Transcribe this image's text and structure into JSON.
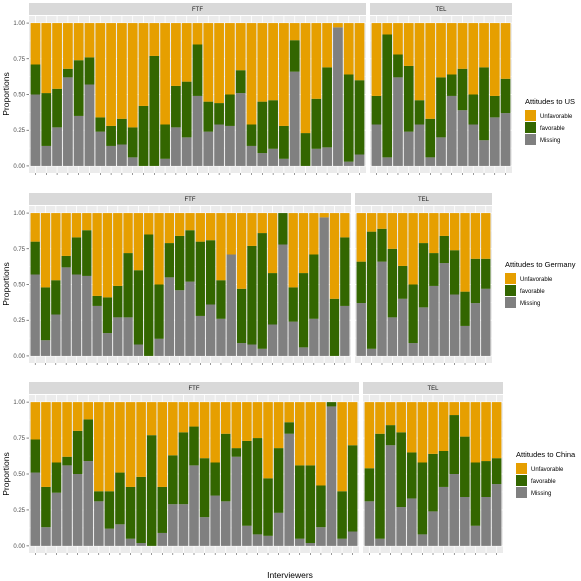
{
  "chart_data": [
    {
      "type": "bar",
      "stacked": true,
      "ylabel": "Proportions",
      "ylim": [
        0,
        1
      ],
      "yticks": [
        "0.00",
        "0.25",
        "0.50",
        "0.75",
        "1.00"
      ],
      "legend_title": "Attitudes to US",
      "legend_position": "right",
      "series_order": [
        "Missing",
        "favorable",
        "Unfavorable"
      ],
      "legend_entries": [
        "Unfavorable",
        "favorable",
        "Missing"
      ],
      "colors": {
        "Missing": "#808080",
        "favorable": "#336600",
        "Unfavorable": "#E69F00"
      },
      "facets": [
        {
          "label": "FTF",
          "missing": [
            0.5,
            0.14,
            0.27,
            0.62,
            0.35,
            0.57,
            0.24,
            0.14,
            0.15,
            0.06,
            0.0,
            0.0,
            0.05,
            0.27,
            0.2,
            0.49,
            0.24,
            0.29,
            0.28,
            0.51,
            0.14,
            0.09,
            0.12,
            0.05,
            0.66,
            0.0,
            0.12,
            0.13,
            0.97,
            0.03,
            0.08
          ],
          "favorable": [
            0.21,
            0.37,
            0.27,
            0.06,
            0.39,
            0.19,
            0.1,
            0.14,
            0.18,
            0.21,
            0.42,
            0.77,
            0.24,
            0.29,
            0.39,
            0.36,
            0.21,
            0.15,
            0.22,
            0.16,
            0.15,
            0.36,
            0.34,
            0.23,
            0.22,
            0.23,
            0.35,
            0.56,
            0.0,
            0.61,
            0.52
          ]
        },
        {
          "label": "TEL",
          "missing": [
            0.29,
            0.06,
            0.62,
            0.24,
            0.29,
            0.06,
            0.2,
            0.49,
            0.39,
            0.29,
            0.18,
            0.34,
            0.37
          ],
          "favorable": [
            0.2,
            0.86,
            0.16,
            0.46,
            0.17,
            0.27,
            0.42,
            0.15,
            0.29,
            0.21,
            0.51,
            0.15,
            0.24
          ]
        }
      ]
    },
    {
      "type": "bar",
      "stacked": true,
      "ylabel": "Proportions",
      "ylim": [
        0,
        1
      ],
      "yticks": [
        "0.00",
        "0.25",
        "0.50",
        "0.75",
        "1.00"
      ],
      "legend_title": "Attitudes to Germany",
      "legend_position": "right",
      "series_order": [
        "Missing",
        "favorable",
        "Unfavorable"
      ],
      "legend_entries": [
        "Unfavorable",
        "favorable",
        "Missing"
      ],
      "colors": {
        "Missing": "#808080",
        "favorable": "#336600",
        "Unfavorable": "#E69F00"
      },
      "facets": [
        {
          "label": "FTF",
          "missing": [
            0.57,
            0.11,
            0.29,
            0.62,
            0.57,
            0.56,
            0.35,
            0.16,
            0.27,
            0.27,
            0.08,
            0.0,
            0.12,
            0.55,
            0.46,
            0.52,
            0.28,
            0.36,
            0.26,
            0.71,
            0.09,
            0.08,
            0.05,
            0.22,
            0.78,
            0.24,
            0.06,
            0.26,
            0.97,
            0.0,
            0.35
          ],
          "favorable": [
            0.23,
            0.37,
            0.24,
            0.08,
            0.26,
            0.32,
            0.07,
            0.25,
            0.22,
            0.45,
            0.52,
            0.85,
            0.38,
            0.24,
            0.38,
            0.36,
            0.52,
            0.45,
            0.27,
            0.0,
            0.38,
            0.69,
            0.81,
            0.36,
            0.22,
            0.24,
            0.52,
            0.45,
            0.0,
            0.4,
            0.48
          ]
        },
        {
          "label": "TEL",
          "missing": [
            0.37,
            0.05,
            0.66,
            0.27,
            0.4,
            0.09,
            0.34,
            0.49,
            0.65,
            0.43,
            0.21,
            0.37,
            0.47
          ],
          "favorable": [
            0.29,
            0.82,
            0.23,
            0.48,
            0.23,
            0.41,
            0.45,
            0.23,
            0.19,
            0.31,
            0.24,
            0.31,
            0.21
          ]
        }
      ]
    },
    {
      "type": "bar",
      "stacked": true,
      "ylabel": "Proportions",
      "ylim": [
        0,
        1
      ],
      "yticks": [
        "0.00",
        "0.25",
        "0.50",
        "0.75",
        "1.00"
      ],
      "legend_title": "Attitudes to China",
      "legend_position": "right",
      "series_order": [
        "Missing",
        "favorable",
        "Unfavorable"
      ],
      "legend_entries": [
        "Unfavorable",
        "favorable",
        "Missing"
      ],
      "colors": {
        "Missing": "#808080",
        "favorable": "#336600",
        "Unfavorable": "#E69F00"
      },
      "facets": [
        {
          "label": "FTF",
          "missing": [
            0.51,
            0.13,
            0.37,
            0.56,
            0.5,
            0.59,
            0.31,
            0.12,
            0.15,
            0.05,
            0.02,
            0.0,
            0.09,
            0.29,
            0.29,
            0.56,
            0.2,
            0.35,
            0.31,
            0.62,
            0.14,
            0.08,
            0.07,
            0.23,
            0.78,
            0.05,
            0.02,
            0.13,
            0.97,
            0.05,
            0.1
          ],
          "favorable": [
            0.23,
            0.28,
            0.21,
            0.06,
            0.3,
            0.29,
            0.07,
            0.26,
            0.36,
            0.36,
            0.46,
            0.77,
            0.32,
            0.34,
            0.5,
            0.27,
            0.41,
            0.23,
            0.47,
            0.06,
            0.59,
            0.67,
            0.4,
            0.45,
            0.08,
            0.51,
            0.54,
            0.29,
            0.03,
            0.33,
            0.6
          ]
        },
        {
          "label": "TEL",
          "missing": [
            0.31,
            0.05,
            0.7,
            0.27,
            0.33,
            0.08,
            0.24,
            0.41,
            0.5,
            0.34,
            0.14,
            0.34,
            0.43
          ],
          "favorable": [
            0.23,
            0.73,
            0.14,
            0.52,
            0.32,
            0.5,
            0.4,
            0.25,
            0.41,
            0.42,
            0.44,
            0.25,
            0.18
          ]
        }
      ]
    }
  ],
  "shared": {
    "xlabel": "Interviewers"
  }
}
